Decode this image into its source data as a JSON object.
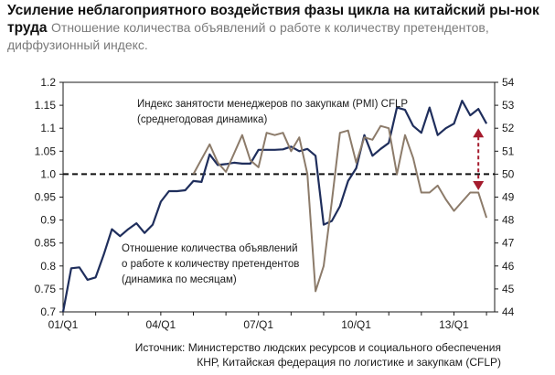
{
  "header": {
    "title": "Усиление неблагоприятного воздействия фазы цикла на китайский ры-нок труда",
    "subtitle": "Отношение количества объявлений о работе к количеству претендентов, диффузионный индекс."
  },
  "source": {
    "line1": "Источник: Министерство людских ресурсов и социального обеспечения",
    "line2": "КНР, Китайская федерация по логистике и закупкам (CFLP)"
  },
  "chart_data": {
    "type": "line",
    "x_ticks": [
      "01/Q1",
      "04/Q1",
      "07/Q1",
      "10/Q1",
      "13/Q1"
    ],
    "x_range": [
      2001.0,
      2014.25
    ],
    "y_left": {
      "min": 0.7,
      "max": 1.2,
      "step": 0.05,
      "ticks": [
        "0.7",
        "0.75",
        "0.8",
        "0.85",
        "0.9",
        "0.95",
        "1.0",
        "1.05",
        "1.1",
        "1.15",
        "1.2"
      ]
    },
    "y_right": {
      "min": 44,
      "max": 54,
      "step": 1,
      "ticks": [
        "44",
        "45",
        "46",
        "47",
        "48",
        "49",
        "50",
        "51",
        "52",
        "53",
        "54"
      ]
    },
    "reference_line": {
      "axis": "left",
      "value": 1.0,
      "style": "dashed"
    },
    "series": [
      {
        "axis": "left",
        "color": "#1f2e5c",
        "annotation": [
          "Отношение количества объявлений",
          "о работе к количеству претендентов",
          "(динамика по месяцам)"
        ],
        "x": [
          2001.0,
          2001.25,
          2001.5,
          2001.75,
          2002.0,
          2002.25,
          2002.5,
          2002.75,
          2003.0,
          2003.25,
          2003.5,
          2003.75,
          2004.0,
          2004.25,
          2004.5,
          2004.75,
          2005.0,
          2005.25,
          2005.5,
          2005.75,
          2006.0,
          2006.25,
          2006.5,
          2006.75,
          2007.0,
          2007.25,
          2007.5,
          2007.75,
          2008.0,
          2008.25,
          2008.5,
          2008.75,
          2009.0,
          2009.25,
          2009.5,
          2009.75,
          2010.0,
          2010.25,
          2010.5,
          2010.75,
          2011.0,
          2011.25,
          2011.5,
          2011.75,
          2012.0,
          2012.25,
          2012.5,
          2012.75,
          2013.0,
          2013.25,
          2013.5,
          2013.75,
          2014.0
        ],
        "y": [
          0.7,
          0.795,
          0.797,
          0.77,
          0.775,
          0.825,
          0.88,
          0.865,
          0.88,
          0.893,
          0.872,
          0.89,
          0.94,
          0.963,
          0.963,
          0.965,
          0.985,
          0.983,
          1.043,
          1.02,
          1.022,
          1.025,
          1.023,
          1.023,
          1.053,
          1.053,
          1.053,
          1.054,
          1.06,
          1.05,
          1.055,
          1.04,
          0.89,
          0.898,
          0.93,
          0.985,
          1.013,
          1.085,
          1.04,
          1.055,
          1.068,
          1.145,
          1.14,
          1.105,
          1.09,
          1.145,
          1.085,
          1.1,
          1.11,
          1.16,
          1.128,
          1.142,
          1.11
        ]
      },
      {
        "axis": "right",
        "color": "#8c7b6a",
        "annotation": [
          "Индекс занятости менеджеров по закупкам (PMI) CFLP",
          "(среднегодовая динамика)"
        ],
        "x": [
          2005.0,
          2005.5,
          2005.75,
          2006.0,
          2006.5,
          2006.75,
          2007.0,
          2007.25,
          2007.5,
          2007.75,
          2008.0,
          2008.25,
          2008.5,
          2008.75,
          2009.0,
          2009.25,
          2009.5,
          2009.75,
          2010.0,
          2010.25,
          2010.5,
          2010.75,
          2011.0,
          2011.25,
          2011.5,
          2011.75,
          2012.0,
          2012.25,
          2012.5,
          2012.75,
          2013.0,
          2013.25,
          2013.5,
          2013.75,
          2014.0
        ],
        "y": [
          50.0,
          51.3,
          50.5,
          50.1,
          51.7,
          50.6,
          50.3,
          51.8,
          51.7,
          51.8,
          51.0,
          51.6,
          50.0,
          44.9,
          46.0,
          48.8,
          51.8,
          51.9,
          50.5,
          51.6,
          51.5,
          52.1,
          52.0,
          50.0,
          51.7,
          50.7,
          49.2,
          49.2,
          49.5,
          48.9,
          48.4,
          48.8,
          49.2,
          49.2,
          48.1
        ]
      }
    ],
    "marker": {
      "type": "double-arrow",
      "color": "#a51c2e",
      "x": 2013.75,
      "y_from": 52.0,
      "y_to": 49.3,
      "axis": "right"
    }
  }
}
